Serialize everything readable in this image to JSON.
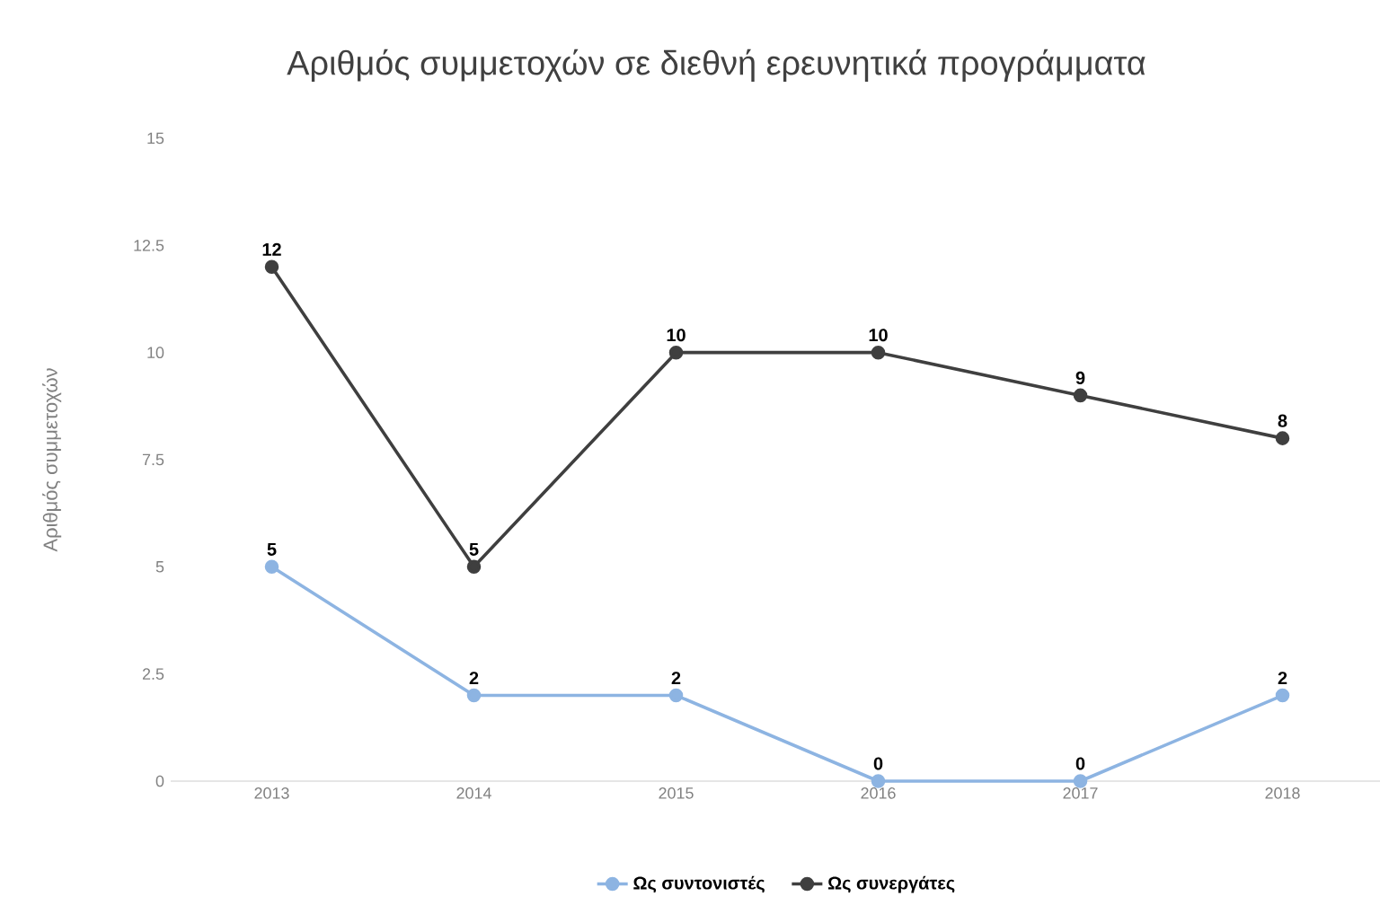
{
  "chart_data": {
    "type": "line",
    "title": "Αριθμός συμμετοχών σε διεθνή ερευνητικά προγράμματα",
    "ylabel": "Αριθμός συμμετοχών",
    "categories": [
      "2013",
      "2014",
      "2015",
      "2016",
      "2017",
      "2018"
    ],
    "series": [
      {
        "name": "Ως συντονιστές",
        "color": "#8db4e2",
        "values": [
          5,
          2,
          2,
          0,
          0,
          2
        ]
      },
      {
        "name": "Ως συνεργάτες",
        "color": "#3f3f3f",
        "values": [
          12,
          5,
          10,
          10,
          9,
          8
        ]
      }
    ],
    "ylim": [
      0,
      15
    ],
    "yticks": [
      0,
      2.5,
      5,
      7.5,
      10,
      12.5,
      15
    ],
    "grid": false,
    "legend": "bottom",
    "marker": "circle",
    "line_style": "solid",
    "data_labels": true
  }
}
